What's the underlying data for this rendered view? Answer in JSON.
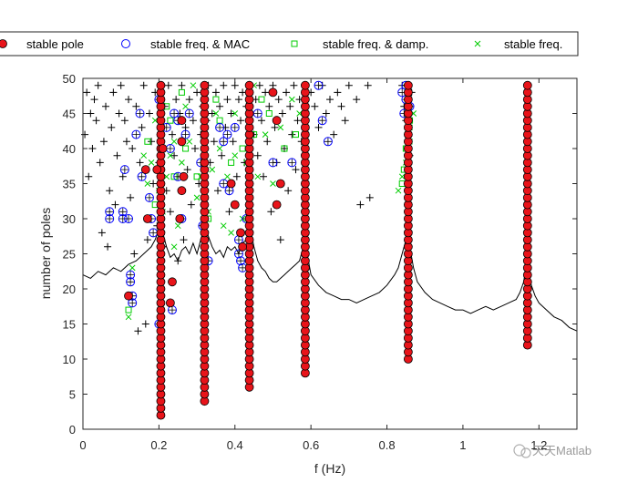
{
  "chart_data": {
    "type": "scatter",
    "title": "",
    "xlabel": "f (Hz)",
    "ylabel": "number of poles",
    "xlim": [
      0,
      1.3
    ],
    "ylim": [
      0,
      50
    ],
    "xticks": [
      0,
      0.2,
      0.4,
      0.6,
      0.8,
      1,
      1.2
    ],
    "xtick_labels": [
      "0",
      "0.2",
      "0.4",
      "0.6",
      "0.8",
      "1",
      "1.2"
    ],
    "yticks": [
      0,
      5,
      10,
      15,
      20,
      25,
      30,
      35,
      40,
      45,
      50
    ],
    "ytick_labels": [
      "0",
      "5",
      "10",
      "15",
      "20",
      "25",
      "30",
      "35",
      "40",
      "45",
      "50"
    ],
    "grid": false,
    "legend_position": "top",
    "watermark": "天天Matlab",
    "colors": {
      "stable_pole_fill": "#e8141a",
      "stable_pole_edge": "#000000",
      "mac": "#0000ff",
      "damp": "#00cc00",
      "freq": "#00cc00",
      "unstable": "#000000",
      "spectrum": "#000000"
    },
    "legend": [
      {
        "key": "stable_pole",
        "label": "stable pole",
        "marker": "filled-circle"
      },
      {
        "key": "mac",
        "label": "stable freq. & MAC",
        "marker": "open-circle"
      },
      {
        "key": "damp",
        "label": "stable freq. & damp.",
        "marker": "open-square"
      },
      {
        "key": "freq",
        "label": "stable freq.",
        "marker": "x"
      }
    ],
    "stable_pole_columns": [
      {
        "f": 0.205,
        "from": 2,
        "to": 49
      },
      {
        "f": 0.32,
        "from": 4,
        "to": 49
      },
      {
        "f": 0.438,
        "from": 6,
        "to": 49
      },
      {
        "f": 0.585,
        "from": 8,
        "to": 49
      },
      {
        "f": 0.856,
        "from": 10,
        "to": 49
      },
      {
        "f": 1.17,
        "from": 12,
        "to": 49
      }
    ],
    "stable_pole_points": [
      [
        0.195,
        37
      ],
      [
        0.165,
        37
      ],
      [
        0.17,
        30
      ],
      [
        0.21,
        40
      ],
      [
        0.26,
        44
      ],
      [
        0.26,
        41
      ],
      [
        0.255,
        30
      ],
      [
        0.235,
        21
      ],
      [
        0.23,
        18
      ],
      [
        0.12,
        19
      ],
      [
        0.39,
        35
      ],
      [
        0.4,
        32
      ],
      [
        0.42,
        26
      ],
      [
        0.415,
        28
      ],
      [
        0.5,
        48
      ],
      [
        0.51,
        44
      ],
      [
        0.52,
        35
      ],
      [
        0.51,
        32
      ],
      [
        0.265,
        36
      ],
      [
        0.26,
        34
      ]
    ],
    "mac_points": [
      [
        0.07,
        31
      ],
      [
        0.07,
        30
      ],
      [
        0.105,
        31
      ],
      [
        0.105,
        30
      ],
      [
        0.11,
        37
      ],
      [
        0.12,
        30
      ],
      [
        0.125,
        22
      ],
      [
        0.125,
        21
      ],
      [
        0.13,
        19
      ],
      [
        0.13,
        18
      ],
      [
        0.14,
        42
      ],
      [
        0.15,
        45
      ],
      [
        0.155,
        36
      ],
      [
        0.175,
        33
      ],
      [
        0.18,
        30
      ],
      [
        0.185,
        28
      ],
      [
        0.2,
        15
      ],
      [
        0.2,
        47
      ],
      [
        0.22,
        43
      ],
      [
        0.23,
        40
      ],
      [
        0.235,
        17
      ],
      [
        0.24,
        45
      ],
      [
        0.25,
        44
      ],
      [
        0.25,
        36
      ],
      [
        0.26,
        30
      ],
      [
        0.27,
        42
      ],
      [
        0.28,
        45
      ],
      [
        0.31,
        38
      ],
      [
        0.315,
        29
      ],
      [
        0.33,
        24
      ],
      [
        0.36,
        43
      ],
      [
        0.37,
        41
      ],
      [
        0.37,
        35
      ],
      [
        0.38,
        42
      ],
      [
        0.385,
        34
      ],
      [
        0.4,
        43
      ],
      [
        0.41,
        27
      ],
      [
        0.41,
        25
      ],
      [
        0.415,
        24
      ],
      [
        0.42,
        23
      ],
      [
        0.43,
        30
      ],
      [
        0.46,
        45
      ],
      [
        0.5,
        38
      ],
      [
        0.55,
        38
      ],
      [
        0.62,
        49
      ],
      [
        0.63,
        44
      ],
      [
        0.645,
        41
      ],
      [
        0.84,
        48
      ],
      [
        0.845,
        45
      ],
      [
        0.85,
        49
      ],
      [
        0.85,
        47
      ],
      [
        0.86,
        46
      ]
    ],
    "damp_points": [
      [
        0.12,
        17
      ],
      [
        0.17,
        41
      ],
      [
        0.19,
        32
      ],
      [
        0.22,
        46
      ],
      [
        0.23,
        44
      ],
      [
        0.24,
        36
      ],
      [
        0.26,
        48
      ],
      [
        0.27,
        40
      ],
      [
        0.3,
        36
      ],
      [
        0.33,
        30
      ],
      [
        0.35,
        47
      ],
      [
        0.36,
        44
      ],
      [
        0.39,
        38
      ],
      [
        0.42,
        40
      ],
      [
        0.45,
        42
      ],
      [
        0.47,
        47
      ],
      [
        0.49,
        45
      ],
      [
        0.53,
        40
      ],
      [
        0.56,
        42
      ],
      [
        0.84,
        35
      ],
      [
        0.845,
        37
      ],
      [
        0.85,
        40
      ],
      [
        0.855,
        42
      ],
      [
        0.86,
        44
      ]
    ],
    "freq_points": [
      [
        0.12,
        16
      ],
      [
        0.13,
        23
      ],
      [
        0.16,
        39
      ],
      [
        0.17,
        35
      ],
      [
        0.18,
        38
      ],
      [
        0.19,
        44
      ],
      [
        0.2,
        34
      ],
      [
        0.21,
        31
      ],
      [
        0.22,
        36
      ],
      [
        0.23,
        39
      ],
      [
        0.24,
        41
      ],
      [
        0.24,
        26
      ],
      [
        0.25,
        29
      ],
      [
        0.26,
        38
      ],
      [
        0.27,
        46
      ],
      [
        0.28,
        41
      ],
      [
        0.29,
        49
      ],
      [
        0.3,
        33
      ],
      [
        0.31,
        36
      ],
      [
        0.33,
        31
      ],
      [
        0.34,
        37
      ],
      [
        0.35,
        45
      ],
      [
        0.36,
        40
      ],
      [
        0.37,
        29
      ],
      [
        0.38,
        36
      ],
      [
        0.39,
        28
      ],
      [
        0.4,
        45
      ],
      [
        0.4,
        39
      ],
      [
        0.42,
        30
      ],
      [
        0.43,
        38
      ],
      [
        0.44,
        33
      ],
      [
        0.45,
        49
      ],
      [
        0.46,
        36
      ],
      [
        0.48,
        42
      ],
      [
        0.5,
        35
      ],
      [
        0.52,
        43
      ],
      [
        0.55,
        47
      ],
      [
        0.57,
        45
      ],
      [
        0.83,
        34
      ],
      [
        0.84,
        36
      ],
      [
        0.85,
        38
      ],
      [
        0.86,
        43
      ],
      [
        0.87,
        45
      ],
      [
        0.86,
        41
      ]
    ],
    "unstable_points": [
      [
        0.005,
        42
      ],
      [
        0.01,
        48
      ],
      [
        0.015,
        36
      ],
      [
        0.02,
        45
      ],
      [
        0.025,
        40
      ],
      [
        0.03,
        47
      ],
      [
        0.035,
        44
      ],
      [
        0.04,
        49
      ],
      [
        0.045,
        38
      ],
      [
        0.05,
        28
      ],
      [
        0.055,
        41
      ],
      [
        0.06,
        46
      ],
      [
        0.065,
        26
      ],
      [
        0.07,
        34
      ],
      [
        0.075,
        43
      ],
      [
        0.08,
        48
      ],
      [
        0.085,
        32
      ],
      [
        0.09,
        39
      ],
      [
        0.095,
        45
      ],
      [
        0.1,
        49
      ],
      [
        0.105,
        36
      ],
      [
        0.11,
        44
      ],
      [
        0.115,
        41
      ],
      [
        0.12,
        47
      ],
      [
        0.125,
        33
      ],
      [
        0.13,
        40
      ],
      [
        0.135,
        25
      ],
      [
        0.14,
        46
      ],
      [
        0.145,
        14
      ],
      [
        0.15,
        38
      ],
      [
        0.155,
        43
      ],
      [
        0.16,
        49
      ],
      [
        0.165,
        15
      ],
      [
        0.17,
        27
      ],
      [
        0.175,
        45
      ],
      [
        0.18,
        41
      ],
      [
        0.185,
        35
      ],
      [
        0.19,
        48
      ],
      [
        0.195,
        29
      ],
      [
        0.2,
        38
      ],
      [
        0.205,
        43
      ],
      [
        0.21,
        26
      ],
      [
        0.215,
        46
      ],
      [
        0.22,
        34
      ],
      [
        0.225,
        49
      ],
      [
        0.23,
        31
      ],
      [
        0.235,
        42
      ],
      [
        0.24,
        39
      ],
      [
        0.245,
        47
      ],
      [
        0.25,
        24
      ],
      [
        0.255,
        45
      ],
      [
        0.26,
        49
      ],
      [
        0.265,
        27
      ],
      [
        0.27,
        43
      ],
      [
        0.275,
        37
      ],
      [
        0.28,
        47
      ],
      [
        0.285,
        32
      ],
      [
        0.29,
        44
      ],
      [
        0.295,
        40
      ],
      [
        0.3,
        48
      ],
      [
        0.305,
        35
      ],
      [
        0.31,
        42
      ],
      [
        0.315,
        46
      ],
      [
        0.325,
        44
      ],
      [
        0.33,
        49
      ],
      [
        0.335,
        38
      ],
      [
        0.34,
        45
      ],
      [
        0.345,
        41
      ],
      [
        0.35,
        48
      ],
      [
        0.355,
        34
      ],
      [
        0.36,
        46
      ],
      [
        0.365,
        39
      ],
      [
        0.37,
        49
      ],
      [
        0.375,
        43
      ],
      [
        0.38,
        47
      ],
      [
        0.385,
        31
      ],
      [
        0.39,
        45
      ],
      [
        0.395,
        41
      ],
      [
        0.4,
        49
      ],
      [
        0.405,
        36
      ],
      [
        0.41,
        47
      ],
      [
        0.415,
        44
      ],
      [
        0.42,
        48
      ],
      [
        0.425,
        38
      ],
      [
        0.43,
        46
      ],
      [
        0.45,
        42
      ],
      [
        0.455,
        47
      ],
      [
        0.46,
        39
      ],
      [
        0.465,
        49
      ],
      [
        0.47,
        44
      ],
      [
        0.475,
        36
      ],
      [
        0.48,
        48
      ],
      [
        0.485,
        41
      ],
      [
        0.49,
        46
      ],
      [
        0.495,
        31
      ],
      [
        0.5,
        49
      ],
      [
        0.505,
        43
      ],
      [
        0.51,
        38
      ],
      [
        0.515,
        47
      ],
      [
        0.52,
        27
      ],
      [
        0.525,
        45
      ],
      [
        0.53,
        40
      ],
      [
        0.535,
        48
      ],
      [
        0.54,
        34
      ],
      [
        0.545,
        46
      ],
      [
        0.55,
        42
      ],
      [
        0.555,
        49
      ],
      [
        0.56,
        37
      ],
      [
        0.565,
        44
      ],
      [
        0.57,
        47
      ],
      [
        0.575,
        41
      ],
      [
        0.6,
        48
      ],
      [
        0.61,
        46
      ],
      [
        0.62,
        43
      ],
      [
        0.63,
        49
      ],
      [
        0.64,
        45
      ],
      [
        0.65,
        47
      ],
      [
        0.66,
        42
      ],
      [
        0.67,
        48
      ],
      [
        0.68,
        46
      ],
      [
        0.69,
        44
      ],
      [
        0.7,
        49
      ],
      [
        0.72,
        47
      ],
      [
        0.73,
        32
      ],
      [
        0.75,
        49
      ],
      [
        0.755,
        33
      ],
      [
        0.84,
        49
      ],
      [
        0.845,
        46
      ],
      [
        0.85,
        44
      ],
      [
        0.855,
        36
      ],
      [
        0.86,
        39
      ],
      [
        0.865,
        48
      ]
    ],
    "spectrum": {
      "f": [
        0,
        0.02,
        0.04,
        0.06,
        0.08,
        0.1,
        0.12,
        0.14,
        0.16,
        0.17,
        0.18,
        0.19,
        0.2,
        0.205,
        0.21,
        0.22,
        0.23,
        0.24,
        0.25,
        0.26,
        0.27,
        0.28,
        0.29,
        0.3,
        0.31,
        0.32,
        0.33,
        0.34,
        0.35,
        0.36,
        0.37,
        0.38,
        0.39,
        0.4,
        0.41,
        0.42,
        0.43,
        0.44,
        0.45,
        0.46,
        0.47,
        0.48,
        0.49,
        0.5,
        0.51,
        0.52,
        0.53,
        0.54,
        0.55,
        0.56,
        0.57,
        0.58,
        0.585,
        0.59,
        0.6,
        0.62,
        0.64,
        0.66,
        0.68,
        0.7,
        0.72,
        0.74,
        0.76,
        0.78,
        0.8,
        0.82,
        0.83,
        0.84,
        0.85,
        0.856,
        0.86,
        0.87,
        0.88,
        0.9,
        0.92,
        0.94,
        0.96,
        0.98,
        1.0,
        1.02,
        1.04,
        1.06,
        1.08,
        1.1,
        1.12,
        1.14,
        1.15,
        1.16,
        1.165,
        1.17,
        1.175,
        1.18,
        1.19,
        1.2,
        1.22,
        1.24,
        1.26,
        1.28,
        1.3
      ],
      "y": [
        22,
        21.5,
        22.5,
        22,
        23,
        22.5,
        23.5,
        24,
        25,
        25.5,
        26,
        27,
        28.5,
        30,
        28,
        26,
        24.5,
        25,
        24,
        25.5,
        26,
        25,
        26.5,
        25,
        27,
        29,
        27.5,
        26,
        25,
        25.5,
        24.5,
        26,
        25.5,
        26,
        25,
        26.5,
        27,
        29,
        26,
        24,
        23,
        22.5,
        21.5,
        21,
        21,
        21.5,
        22,
        22.5,
        23,
        23.5,
        24,
        26,
        27,
        25,
        22,
        20.5,
        19.5,
        19,
        18.5,
        18.5,
        18,
        18.5,
        19,
        19.5,
        20.5,
        22,
        23,
        25,
        27,
        29,
        26,
        23,
        21,
        19.5,
        18.5,
        18,
        17.5,
        17,
        17,
        16.5,
        17,
        17.5,
        17,
        17.5,
        18,
        18.5,
        19.5,
        21,
        23,
        24.5,
        22,
        20.5,
        19,
        18,
        17,
        16,
        15.5,
        14.5,
        14
      ]
    }
  }
}
